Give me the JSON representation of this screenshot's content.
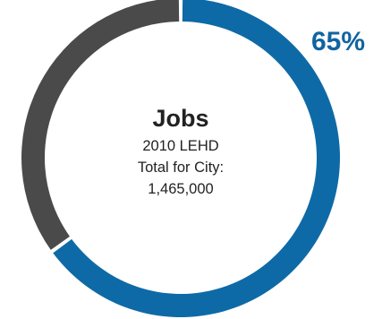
{
  "chart_data": {
    "type": "pie",
    "variant": "donut",
    "series": [
      {
        "value": 65,
        "color": "#0e6aa6"
      },
      {
        "value": 35,
        "color": "#4a4a4a"
      }
    ],
    "data_label": "65%",
    "data_label_color": "#1164a0",
    "center": {
      "title": "Jobs",
      "lines": [
        "2010 LEHD",
        "Total for City:",
        "1,465,000"
      ]
    }
  }
}
